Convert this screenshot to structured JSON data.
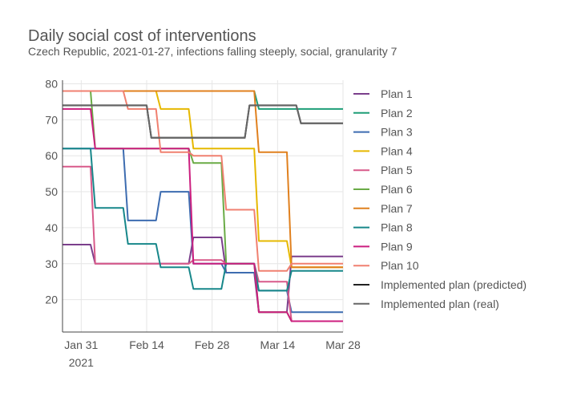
{
  "chart_data": {
    "type": "line",
    "title": "Daily social cost of interventions",
    "subtitle": "Czech Republic, 2021-01-27, infections falling steeply, social, granularity 7",
    "xlabel": "",
    "ylabel": "",
    "x_range": [
      "2021-01-27",
      "2021-03-28"
    ],
    "ylim": [
      11,
      81
    ],
    "x_ticks": [
      {
        "date": "2021-01-31",
        "label": "Jan 31",
        "sublabel": "2021"
      },
      {
        "date": "2021-02-14",
        "label": "Feb 14",
        "sublabel": ""
      },
      {
        "date": "2021-02-28",
        "label": "Feb 28",
        "sublabel": ""
      },
      {
        "date": "2021-03-14",
        "label": "Mar 14",
        "sublabel": ""
      },
      {
        "date": "2021-03-28",
        "label": "Mar 28",
        "sublabel": ""
      }
    ],
    "y_ticks": [
      20,
      30,
      40,
      50,
      60,
      70,
      80
    ],
    "grid": true,
    "legend_position": "right",
    "series": [
      {
        "name": "Plan 1",
        "color": "#7b3f8c",
        "x": [
          "2021-01-27",
          "2021-02-02",
          "2021-02-03",
          "2021-02-23",
          "2021-02-24",
          "2021-03-02",
          "2021-03-03",
          "2021-03-09",
          "2021-03-10",
          "2021-03-16",
          "2021-03-17",
          "2021-03-28"
        ],
        "y": [
          35.3,
          35.3,
          30,
          30,
          37.3,
          37.3,
          27.5,
          27.5,
          16.5,
          16.5,
          32,
          32
        ]
      },
      {
        "name": "Plan 2",
        "color": "#1e9e77",
        "x": [
          "2021-01-27",
          "2021-03-09",
          "2021-03-10",
          "2021-03-28"
        ],
        "y": [
          78,
          78,
          73,
          73
        ]
      },
      {
        "name": "Plan 3",
        "color": "#3d6cb0",
        "x": [
          "2021-01-27",
          "2021-02-09",
          "2021-02-10",
          "2021-02-16",
          "2021-02-17",
          "2021-02-23",
          "2021-02-24",
          "2021-03-02",
          "2021-03-03",
          "2021-03-09",
          "2021-03-10",
          "2021-03-16",
          "2021-03-17",
          "2021-03-28"
        ],
        "y": [
          62,
          62,
          42,
          42,
          50,
          50,
          30,
          30,
          27.5,
          27.5,
          22.5,
          22.5,
          16.5,
          16.5
        ]
      },
      {
        "name": "Plan 4",
        "color": "#e6b800",
        "x": [
          "2021-01-27",
          "2021-02-16",
          "2021-02-17",
          "2021-02-23",
          "2021-02-24",
          "2021-03-09",
          "2021-03-10",
          "2021-03-16",
          "2021-03-17",
          "2021-03-28"
        ],
        "y": [
          78,
          78,
          73,
          73,
          62,
          62,
          36.3,
          36.3,
          29,
          29
        ]
      },
      {
        "name": "Plan 5",
        "color": "#d85a8a",
        "x": [
          "2021-01-27",
          "2021-02-02",
          "2021-02-03",
          "2021-02-23",
          "2021-02-24",
          "2021-03-02",
          "2021-03-03",
          "2021-03-09",
          "2021-03-10",
          "2021-03-16",
          "2021-03-17",
          "2021-03-28"
        ],
        "y": [
          57,
          57,
          30,
          30,
          31,
          31,
          30,
          30,
          25,
          25,
          14,
          14
        ]
      },
      {
        "name": "Plan 6",
        "color": "#6aab46",
        "x": [
          "2021-01-27",
          "2021-02-02",
          "2021-02-03",
          "2021-02-23",
          "2021-02-24",
          "2021-03-02",
          "2021-03-03",
          "2021-03-09",
          "2021-03-10",
          "2021-03-16",
          "2021-03-17",
          "2021-03-28"
        ],
        "y": [
          78,
          78,
          62,
          62,
          58,
          58,
          30,
          30,
          16.5,
          16.5,
          14,
          14
        ]
      },
      {
        "name": "Plan 7",
        "color": "#e0801e",
        "x": [
          "2021-01-27",
          "2021-03-09",
          "2021-03-10",
          "2021-03-16",
          "2021-03-17",
          "2021-03-28"
        ],
        "y": [
          78,
          78,
          61,
          61,
          29,
          29
        ]
      },
      {
        "name": "Plan 8",
        "color": "#17878a",
        "x": [
          "2021-01-27",
          "2021-02-02",
          "2021-02-03",
          "2021-02-09",
          "2021-02-10",
          "2021-02-16",
          "2021-02-17",
          "2021-02-23",
          "2021-02-24",
          "2021-03-02",
          "2021-03-03",
          "2021-03-09",
          "2021-03-10",
          "2021-03-16",
          "2021-03-17",
          "2021-03-28"
        ],
        "y": [
          62,
          62,
          45.5,
          45.5,
          35.5,
          35.5,
          29,
          29,
          23,
          23,
          30,
          30,
          22.5,
          22.5,
          28,
          28
        ]
      },
      {
        "name": "Plan 9",
        "color": "#cc1f7f",
        "x": [
          "2021-01-27",
          "2021-02-02",
          "2021-02-03",
          "2021-02-23",
          "2021-02-24",
          "2021-03-09",
          "2021-03-10",
          "2021-03-16",
          "2021-03-17",
          "2021-03-28"
        ],
        "y": [
          73,
          73,
          62,
          62,
          30,
          30,
          16.5,
          16.5,
          14,
          14
        ]
      },
      {
        "name": "Plan 10",
        "color": "#f08070",
        "x": [
          "2021-01-27",
          "2021-02-09",
          "2021-02-10",
          "2021-02-16",
          "2021-02-17",
          "2021-02-23",
          "2021-02-24",
          "2021-03-02",
          "2021-03-03",
          "2021-03-09",
          "2021-03-10",
          "2021-03-16",
          "2021-03-17",
          "2021-03-28"
        ],
        "y": [
          78,
          78,
          73,
          73,
          61,
          61,
          60,
          60,
          45,
          45,
          28,
          28,
          30,
          30
        ]
      },
      {
        "name": "Implemented plan (predicted)",
        "color": "#222222",
        "x": [
          "2021-01-27",
          "2021-02-14",
          "2021-02-15",
          "2021-03-07",
          "2021-03-08",
          "2021-03-18",
          "2021-03-19",
          "2021-03-28"
        ],
        "y": [
          74,
          74,
          65,
          65,
          74,
          74,
          69,
          69
        ]
      },
      {
        "name": "Implemented plan (real)",
        "color": "#666666",
        "x": [
          "2021-01-27",
          "2021-02-14",
          "2021-02-15",
          "2021-03-07",
          "2021-03-08",
          "2021-03-18",
          "2021-03-19",
          "2021-03-28"
        ],
        "y": [
          74,
          74,
          65,
          65,
          74,
          74,
          69,
          69
        ]
      }
    ]
  }
}
